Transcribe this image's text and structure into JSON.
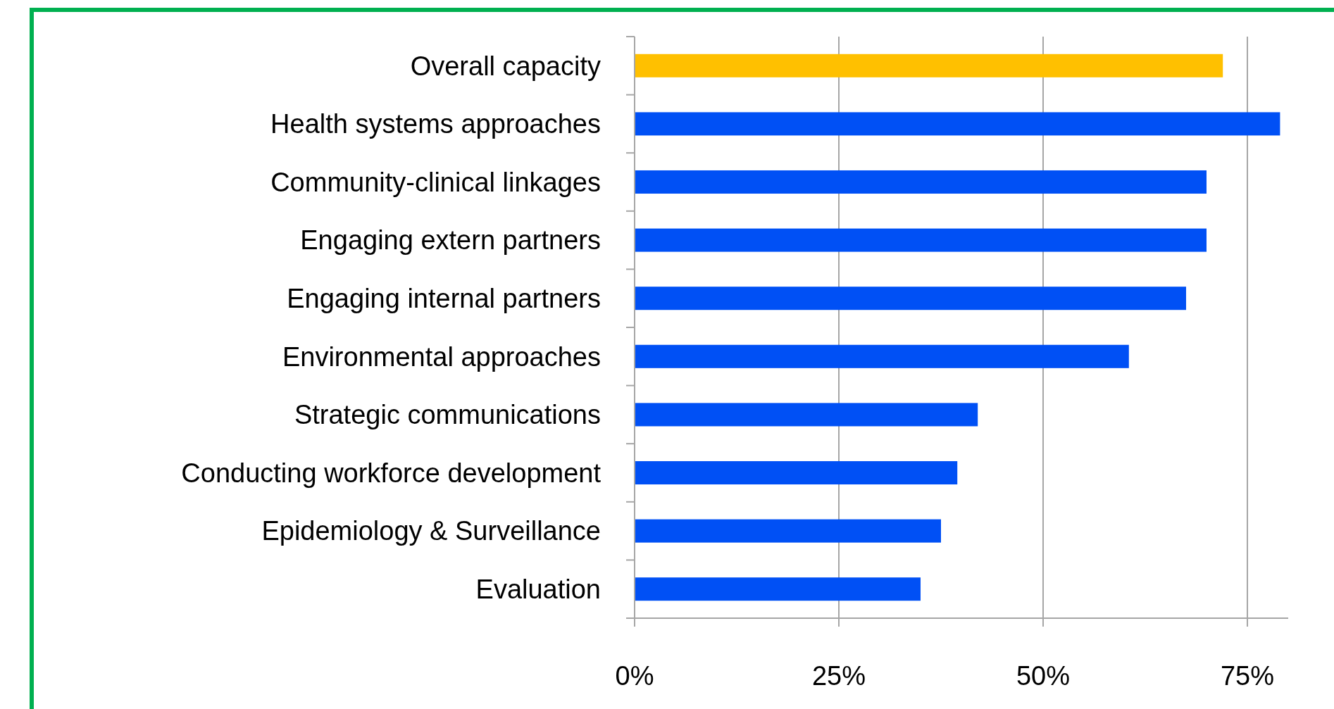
{
  "chart_data": {
    "type": "bar",
    "orientation": "horizontal",
    "categories": [
      "Overall capacity",
      "Health systems approaches",
      "Community-clinical linkages",
      "Engaging extern partners",
      "Engaging internal partners",
      "Environmental approaches",
      "Strategic communications",
      "Conducting workforce development",
      "Epidemiology & Surveillance",
      "Evaluation"
    ],
    "values": [
      72,
      79,
      70,
      70,
      67.5,
      60.5,
      42,
      39.5,
      37.5,
      35
    ],
    "colors": [
      "#ffc000",
      "#0050f5",
      "#0050f5",
      "#0050f5",
      "#0050f5",
      "#0050f5",
      "#0050f5",
      "#0050f5",
      "#0050f5",
      "#0050f5"
    ],
    "xlim": [
      0,
      80
    ],
    "xticks": [
      {
        "value": 0,
        "label": "0%"
      },
      {
        "value": 25,
        "label": "25%"
      },
      {
        "value": 50,
        "label": "50%"
      },
      {
        "value": 75,
        "label": "75%"
      }
    ],
    "grid": "x"
  }
}
